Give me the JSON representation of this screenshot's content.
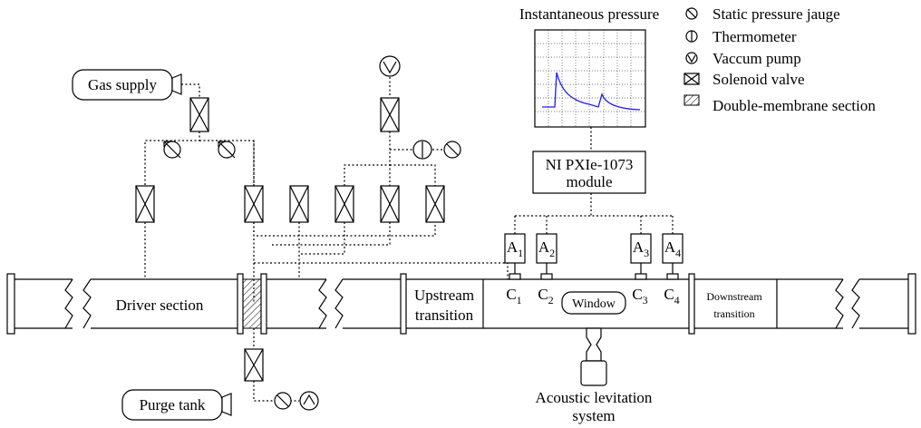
{
  "scope": {
    "title": "Instantaneous pressure"
  },
  "legend": {
    "items": [
      "Static pressure jauge",
      "Thermometer",
      "Vaccum pump",
      "Solenoid valve",
      "Double-membrane section"
    ]
  },
  "tanks": {
    "gas_supply": "Gas supply",
    "purge_tank": "Purge tank"
  },
  "module": {
    "lines": [
      "NI PXIe-1073",
      "module"
    ]
  },
  "amplifiers": [
    {
      "letter": "A",
      "index": "1"
    },
    {
      "letter": "A",
      "index": "2"
    },
    {
      "letter": "A",
      "index": "3"
    },
    {
      "letter": "A",
      "index": "4"
    }
  ],
  "sensors": [
    {
      "letter": "C",
      "index": "1"
    },
    {
      "letter": "C",
      "index": "2"
    },
    {
      "letter": "C",
      "index": "3"
    },
    {
      "letter": "C",
      "index": "4"
    }
  ],
  "tube": {
    "driver": "Driver section",
    "upstream": [
      "Upstream",
      "transition"
    ],
    "window": "Window",
    "downstream": [
      "Downstream",
      "transition"
    ]
  },
  "levitation": {
    "lines": [
      "Acoustic levitation",
      "system"
    ]
  }
}
